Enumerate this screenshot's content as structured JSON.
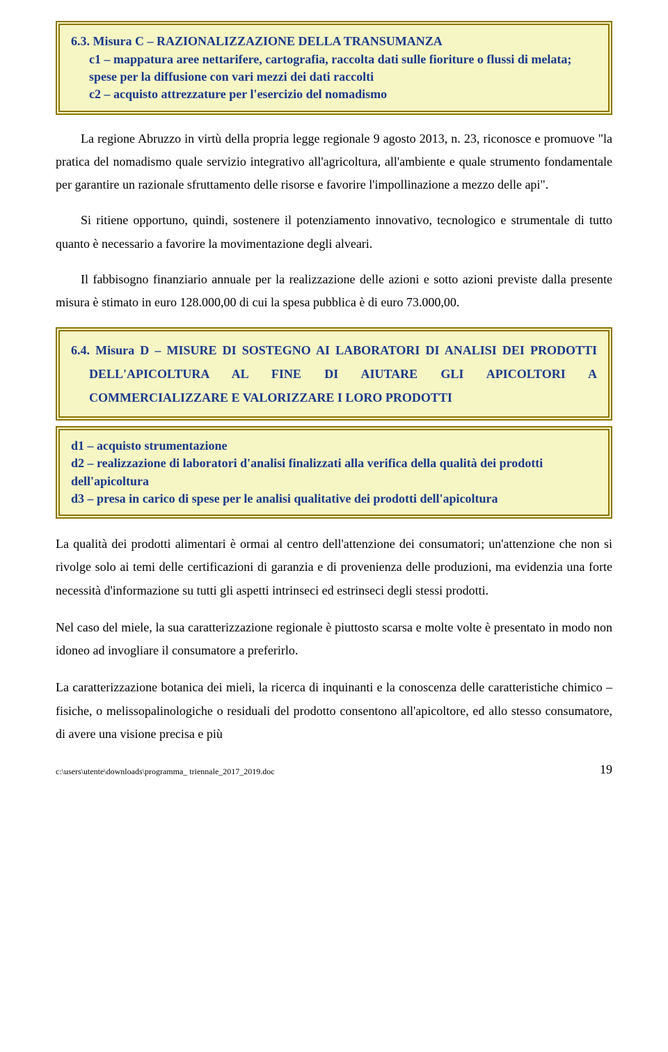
{
  "box1": {
    "title": "6.3. Misura C – RAZIONALIZZAZIONE DELLA TRANSUMANZA",
    "c1": "c1 – mappatura aree nettarifere, cartografia, raccolta dati sulle fioriture o flussi di melata; spese per la diffusione con vari mezzi dei dati raccolti",
    "c2": "c2 – acquisto attrezzature per l'esercizio del nomadismo"
  },
  "para1": "La regione Abruzzo in virtù della propria legge regionale 9 agosto 2013, n. 23, riconosce e promuove \"la pratica del nomadismo quale servizio integrativo all'agricoltura, all'ambiente e quale strumento fondamentale per garantire un razionale sfruttamento delle risorse e favorire l'impollinazione a mezzo delle api\".",
  "para2": "Si ritiene opportuno, quindi, sostenere il potenziamento innovativo, tecnologico e strumentale di tutto quanto è necessario a favorire la movimentazione degli alveari.",
  "para3": "Il fabbisogno finanziario annuale per la realizzazione delle azioni e sotto azioni previste dalla presente misura è stimato in euro 128.000,00 di cui la spesa pubblica è di euro 73.000,00.",
  "box2": {
    "title": "6.4. Misura D – MISURE DI SOSTEGNO AI LABORATORI DI ANALISI DEI PRODOTTI DELL'APICOLTURA AL FINE DI AIUTARE GLI APICOLTORI A COMMERCIALIZZARE E VALORIZZARE I LORO PRODOTTI",
    "d1": "d1 – acquisto strumentazione",
    "d2": "d2 – realizzazione di laboratori d'analisi finalizzati alla verifica della qualità dei prodotti dell'apicoltura",
    "d3": "d3 – presa in carico di spese per le analisi qualitative dei prodotti dell'apicoltura"
  },
  "para4": "La qualità dei prodotti alimentari è ormai al centro dell'attenzione dei consumatori; un'attenzione che non si rivolge solo ai temi delle certificazioni di garanzia e di provenienza delle produzioni, ma evidenzia una forte necessità d'informazione su tutti gli aspetti intrinseci ed estrinseci degli stessi prodotti.",
  "para5": "Nel caso del miele, la sua caratterizzazione regionale è piuttosto scarsa e molte volte è presentato in modo non idoneo ad invogliare il consumatore a preferirlo.",
  "para6": "La caratterizzazione botanica dei mieli, la ricerca di inquinanti e la conoscenza delle caratteristiche chimico – fisiche, o melissopalinologiche o residuali del prodotto consentono all'apicoltore, ed allo stesso consumatore, di avere una visione precisa e più",
  "footer": {
    "path": "c:\\users\\utente\\downloads\\programma_ triennale_2017_2019.doc",
    "page": "19"
  },
  "colors": {
    "box_bg": "#f6f6c5",
    "box_border": "#8b7500",
    "heading_text": "#1a3a8a",
    "body_text": "#000000",
    "page_bg": "#ffffff"
  },
  "fonts": {
    "body_family": "Times New Roman",
    "body_size_pt": 13,
    "heading_weight": "bold"
  }
}
